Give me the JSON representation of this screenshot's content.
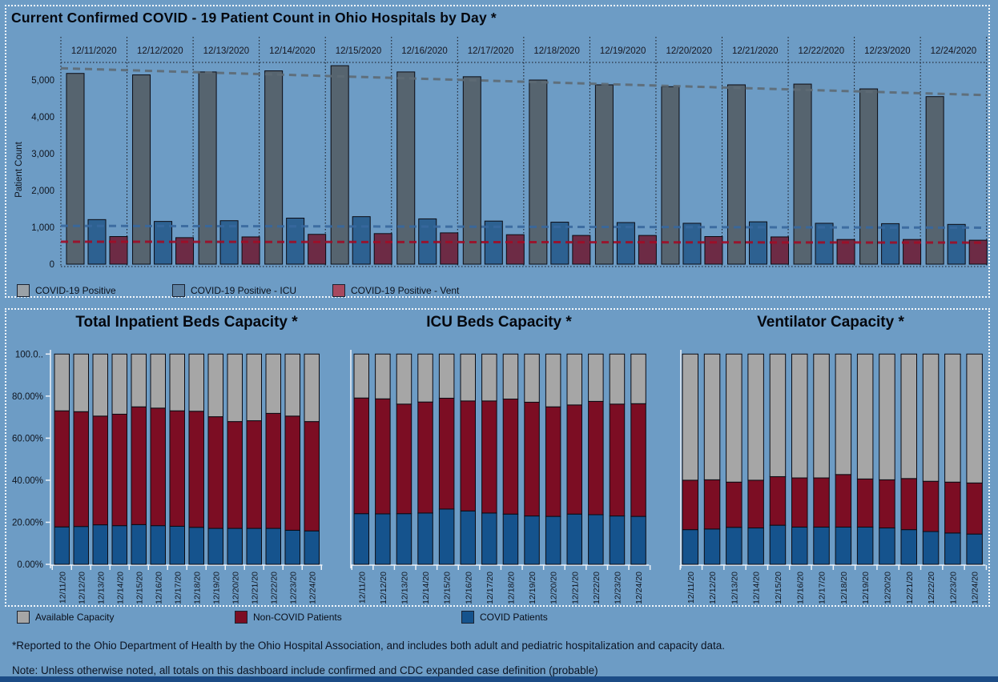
{
  "dashboard": {
    "background_color": "#6d9cc5",
    "bottom_strip_color": "#1c4c86"
  },
  "chart_data": [
    {
      "id": "patient-count-by-day",
      "type": "bar",
      "title": "Current Confirmed COVID - 19 Patient Count in Ohio Hospitals by Day *",
      "xlabel": "",
      "ylabel": "Patient Count",
      "ylim": [
        0,
        5500
      ],
      "grid": false,
      "legend_position": "bottom-left",
      "y_ticks": [
        {
          "v": 0,
          "label": "0"
        },
        {
          "v": 1000,
          "label": "1,000"
        },
        {
          "v": 2000,
          "label": "2,000"
        },
        {
          "v": 3000,
          "label": "3,000"
        },
        {
          "v": 4000,
          "label": "4,000"
        },
        {
          "v": 5000,
          "label": "5,000"
        }
      ],
      "categories": [
        "12/11/2020",
        "12/12/2020",
        "12/13/2020",
        "12/14/2020",
        "12/15/2020",
        "12/16/2020",
        "12/17/2020",
        "12/18/2020",
        "12/19/2020",
        "12/20/2020",
        "12/21/2020",
        "12/22/2020",
        "12/23/2020",
        "12/24/2020"
      ],
      "series": [
        {
          "name": "COVID-19 Positive",
          "color": "#56646f",
          "legend_color": "#9aa1a7",
          "trend_color": "#5e6b75",
          "trend": [
            5320,
            4590
          ],
          "values": [
            5180,
            5140,
            5220,
            5250,
            5390,
            5220,
            5090,
            5000,
            4870,
            4820,
            4870,
            4890,
            4760,
            4550
          ]
        },
        {
          "name": "COVID-19 Positive - ICU",
          "color": "#2d6191",
          "legend_color": "#5d80a1",
          "trend_color": "#38689e",
          "trend": [
            1040,
            990
          ],
          "values": [
            1210,
            1160,
            1180,
            1250,
            1290,
            1230,
            1170,
            1140,
            1130,
            1110,
            1150,
            1110,
            1100,
            1080
          ]
        },
        {
          "name": "COVID-19 Positive - Vent",
          "color": "#6d2b45",
          "legend_color": "#a7495f",
          "trend_color": "#a00d26",
          "trend": [
            610,
            585
          ],
          "values": [
            750,
            720,
            740,
            810,
            830,
            850,
            800,
            780,
            780,
            750,
            740,
            670,
            670,
            650
          ]
        }
      ]
    },
    {
      "id": "inpatient-beds-capacity",
      "type": "stacked-bar-100",
      "title": "Total Inpatient Beds Capacity *",
      "ylim": [
        0,
        100
      ],
      "y_ticks": [
        {
          "v": 0,
          "label": "0.00%"
        },
        {
          "v": 20,
          "label": "20.00%"
        },
        {
          "v": 40,
          "label": "40.00%"
        },
        {
          "v": 60,
          "label": "60.00%"
        },
        {
          "v": 80,
          "label": "80.00%"
        },
        {
          "v": 100,
          "label": "100.0.."
        }
      ],
      "categories": [
        "12/11/20",
        "12/12/20",
        "12/13/20",
        "12/14/20",
        "12/15/20",
        "12/16/20",
        "12/17/20",
        "12/18/20",
        "12/19/20",
        "12/20/20",
        "12/21/20",
        "12/22/20",
        "12/23/20",
        "12/24/20"
      ],
      "series": [
        {
          "name": "COVID Patients",
          "color": "#15538d",
          "values": [
            17.8,
            18.0,
            18.8,
            18.4,
            18.9,
            18.4,
            18.1,
            17.6,
            17.1,
            17.1,
            17.1,
            17.1,
            16.2,
            15.9
          ]
        },
        {
          "name": "Non-COVID Patients",
          "color": "#7c0d23",
          "values": [
            55.2,
            54.6,
            51.7,
            53.0,
            56.0,
            55.9,
            54.9,
            55.2,
            53.1,
            50.8,
            51.2,
            54.7,
            54.3,
            52.0
          ]
        },
        {
          "name": "Available Capacity",
          "color": "#a6a6a6",
          "values": [
            27.0,
            27.4,
            29.5,
            28.6,
            25.1,
            25.7,
            27.0,
            27.2,
            29.8,
            32.1,
            31.7,
            28.2,
            29.5,
            32.1
          ]
        }
      ]
    },
    {
      "id": "icu-beds-capacity",
      "type": "stacked-bar-100",
      "title": "ICU Beds Capacity *",
      "ylim": [
        0,
        100
      ],
      "categories": [
        "12/11/20",
        "12/12/20",
        "12/13/20",
        "12/14/20",
        "12/15/20",
        "12/16/20",
        "12/17/20",
        "12/18/20",
        "12/19/20",
        "12/20/20",
        "12/21/20",
        "12/22/20",
        "12/23/20",
        "12/24/20"
      ],
      "series": [
        {
          "name": "COVID Patients",
          "color": "#15538d",
          "values": [
            24.1,
            24.0,
            24.1,
            24.4,
            26.3,
            25.4,
            24.4,
            23.9,
            23.0,
            22.8,
            23.9,
            23.6,
            23.0,
            22.8
          ]
        },
        {
          "name": "Non-COVID Patients",
          "color": "#7c0d23",
          "values": [
            55.0,
            54.7,
            52.1,
            52.8,
            52.7,
            52.3,
            53.3,
            54.7,
            54.1,
            52.1,
            51.9,
            53.9,
            53.2,
            53.6
          ]
        },
        {
          "name": "Available Capacity",
          "color": "#a6a6a6",
          "values": [
            20.9,
            21.3,
            23.8,
            22.8,
            21.0,
            22.3,
            22.3,
            21.4,
            22.9,
            25.1,
            24.2,
            22.5,
            23.8,
            23.6
          ]
        }
      ]
    },
    {
      "id": "ventilator-capacity",
      "type": "stacked-bar-100",
      "title": "Ventilator Capacity *",
      "ylim": [
        0,
        100
      ],
      "categories": [
        "12/11/20",
        "12/12/20",
        "12/13/20",
        "12/14/20",
        "12/15/20",
        "12/16/20",
        "12/17/20",
        "12/18/20",
        "12/19/20",
        "12/20/20",
        "12/21/20",
        "12/22/20",
        "12/23/20",
        "12/24/20"
      ],
      "series": [
        {
          "name": "COVID Patients",
          "color": "#15538d",
          "values": [
            16.5,
            16.8,
            17.6,
            17.3,
            18.6,
            17.7,
            17.7,
            17.7,
            17.7,
            17.3,
            16.5,
            15.6,
            14.9,
            14.4
          ]
        },
        {
          "name": "Non-COVID Patients",
          "color": "#7c0d23",
          "values": [
            23.5,
            23.4,
            21.5,
            22.7,
            23.1,
            23.4,
            23.4,
            25.0,
            22.9,
            22.9,
            24.3,
            23.9,
            24.2,
            24.3
          ]
        },
        {
          "name": "Available Capacity",
          "color": "#a6a6a6",
          "values": [
            60.0,
            59.8,
            60.9,
            60.0,
            58.3,
            58.9,
            58.9,
            57.3,
            59.4,
            59.8,
            59.2,
            60.5,
            60.9,
            61.3
          ]
        }
      ]
    }
  ],
  "footnotes": {
    "line1": "*Reported to the Ohio Department of Health by the Ohio Hospital Association, and includes both adult and pediatric hospitalization and capacity data.",
    "line2": "Note: Unless otherwise noted, all totals on this dashboard include confirmed and CDC expanded case definition (probable)"
  }
}
